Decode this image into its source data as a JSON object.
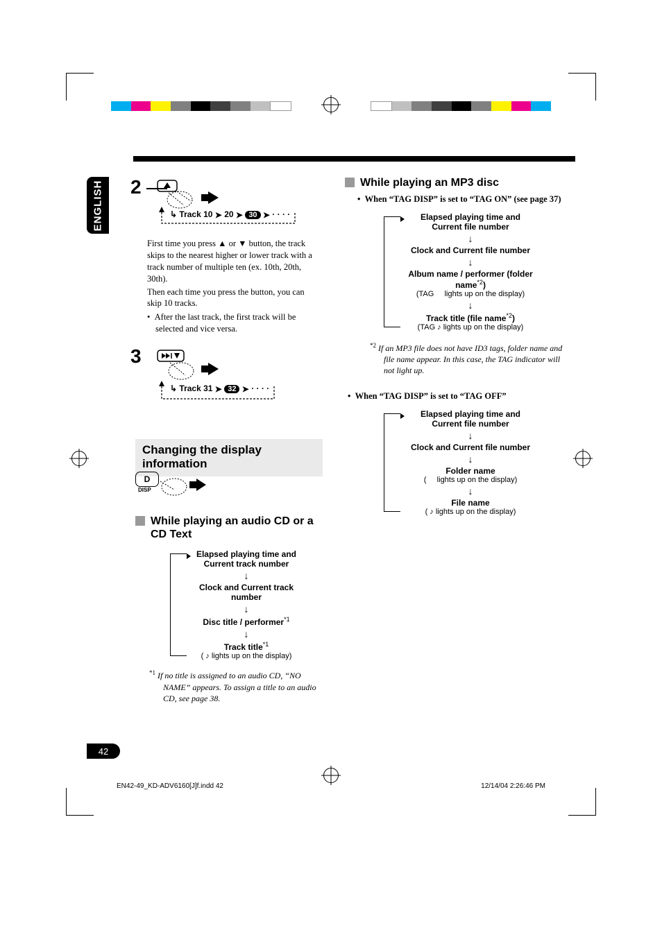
{
  "language_tab": "ENGLISH",
  "page_number": "42",
  "footer": {
    "left": "EN42-49_KD-ADV6160[J]f.indd   42",
    "right": "12/14/04   2:26:46 PM"
  },
  "colorbar": [
    "#00aeef",
    "#ec008c",
    "#fff200",
    "#808080",
    "#000000",
    "#404040",
    "#808080",
    "#c0c0c0",
    "#ffffff"
  ],
  "step2": {
    "num": "2",
    "track_seq_prefix": "Track 10",
    "track_seq_mid": "20",
    "track_seq_pill": "30",
    "body1": "First time you press ▲ or ▼ button, the track skips to the nearest higher or lower track with a track number of multiple ten (ex. 10th, 20th, 30th).",
    "body2": "Then each time you press the button, you can skip 10 tracks.",
    "bullet": "After the last track, the first track will be selected and vice versa."
  },
  "step3": {
    "num": "3",
    "track_seq_prefix": "Track 31",
    "track_seq_pill": "32"
  },
  "changing_title": "Changing the display information",
  "disp_btn": "D",
  "disp_label": "DISP",
  "cd_section": {
    "title": "While playing an audio CD or a CD Text",
    "flow": [
      {
        "bold": "Elapsed playing time and Current track number"
      },
      {
        "bold": "Clock and Current track number"
      },
      {
        "bold": "Disc title / performer",
        "sup": "*1"
      },
      {
        "bold": "Track title",
        "sup": "*1",
        "note": "( ♪ lights up on the display)"
      }
    ],
    "footnote_mark": "*1",
    "footnote": "If no title is assigned to an audio CD, “NO NAME” appears. To assign a title to an audio CD, see page 38."
  },
  "mp3_section": {
    "title": "While playing an MP3 disc",
    "bullet_on": "When “TAG DISP” is set to “TAG ON” (see page 37)",
    "flow_on": [
      {
        "bold": "Elapsed playing time and Current file number"
      },
      {
        "bold": "Clock and Current file number"
      },
      {
        "bold": "Album name / performer (folder name",
        "sup": "*2",
        "bold2": ")",
        "note_icon": "folder",
        "note": "(TAG     lights up on the display)"
      },
      {
        "bold": "Track title (file name",
        "sup": "*2",
        "bold2": ")",
        "note_icon": "note",
        "note": "(TAG ♪ lights up on the display)"
      }
    ],
    "footnote_mark": "*2",
    "footnote": "If an MP3 file does not have ID3 tags, folder name and file name appear. In this case, the TAG indicator will not light up.",
    "bullet_off": "When “TAG DISP” is set to “TAG OFF”",
    "flow_off": [
      {
        "bold": "Elapsed playing time and Current file number"
      },
      {
        "bold": "Clock and Current file number"
      },
      {
        "bold": "Folder name",
        "note_icon": "folder",
        "note": "(     lights up on the display)"
      },
      {
        "bold": "File name",
        "note_icon": "note",
        "note": "( ♪ lights up on the display)"
      }
    ]
  }
}
